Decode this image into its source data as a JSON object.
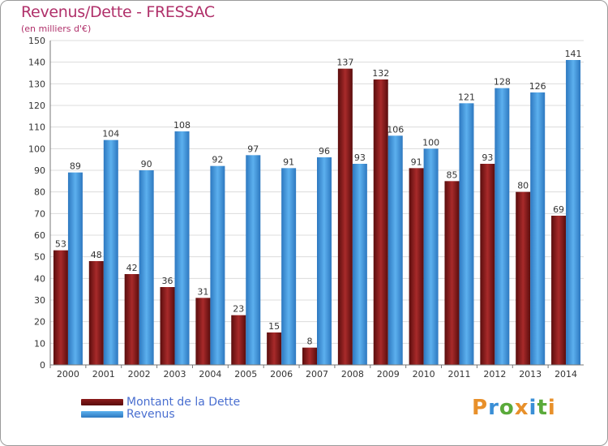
{
  "header": {
    "title": "Revenus/Dette - FRESSAC",
    "subtitle": "(en milliers d'€)"
  },
  "colors": {
    "dette": "#8b1a1a",
    "revenus": "#3a8fd6",
    "title": "#b0306a",
    "legend_text": "#4a6fd0"
  },
  "chart_data": {
    "type": "bar",
    "title": "Revenus/Dette - FRESSAC",
    "subtitle": "(en milliers d'€)",
    "categories": [
      "2000",
      "2001",
      "2002",
      "2003",
      "2004",
      "2005",
      "2006",
      "2007",
      "2008",
      "2009",
      "2010",
      "2011",
      "2012",
      "2013",
      "2014"
    ],
    "series": [
      {
        "name": "Montant de la Dette",
        "values": [
          53,
          48,
          42,
          36,
          31,
          23,
          15,
          8,
          137,
          132,
          91,
          85,
          93,
          80,
          69
        ]
      },
      {
        "name": "Revenus",
        "values": [
          89,
          104,
          90,
          108,
          92,
          97,
          91,
          96,
          93,
          106,
          100,
          121,
          128,
          126,
          141
        ]
      }
    ],
    "ylim": [
      0,
      150
    ],
    "yticks": [
      0,
      10,
      20,
      30,
      40,
      50,
      60,
      70,
      80,
      90,
      100,
      110,
      120,
      130,
      140,
      150
    ],
    "grid": true,
    "legend_position": "bottom-left"
  },
  "legend": {
    "items": [
      {
        "label": "Montant de la Dette",
        "color": "#8b1a1a"
      },
      {
        "label": "Revenus",
        "color": "#3a8fd6"
      }
    ]
  },
  "brand": {
    "letters": [
      "P",
      "r",
      "o",
      "x",
      "i",
      "t",
      "i"
    ],
    "colors": [
      "#e8902a",
      "#3a8fd6",
      "#5aaa3a",
      "#e8902a",
      "#3a8fd6",
      "#5aaa3a",
      "#e8902a"
    ]
  }
}
